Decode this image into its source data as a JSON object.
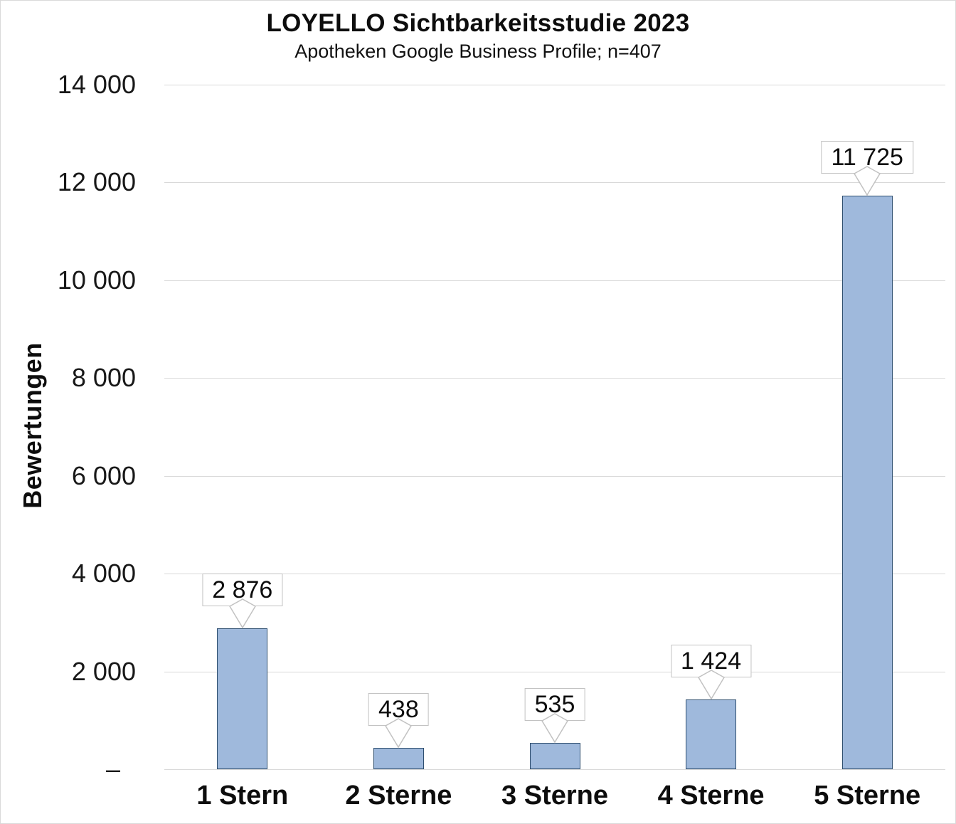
{
  "chart_data": {
    "type": "bar",
    "title": "LOYELLO Sichtbarkeitsstudie 2023",
    "subtitle": "Apotheken Google Business Profile; n=407",
    "ylabel": "Bewertungen",
    "xlabel": "",
    "ylim": [
      0,
      14000
    ],
    "ytick_step": 2000,
    "grid": "horizontal",
    "legend": "none",
    "yticks": [
      {
        "value": 0,
        "label": "–"
      },
      {
        "value": 2000,
        "label": "2 000"
      },
      {
        "value": 4000,
        "label": "4 000"
      },
      {
        "value": 6000,
        "label": "6 000"
      },
      {
        "value": 8000,
        "label": "8 000"
      },
      {
        "value": 10000,
        "label": "10 000"
      },
      {
        "value": 12000,
        "label": "12 000"
      },
      {
        "value": 14000,
        "label": "14 000"
      }
    ],
    "categories": [
      "1 Stern",
      "2 Sterne",
      "3 Sterne",
      "4 Sterne",
      "5 Sterne"
    ],
    "values": [
      2876,
      438,
      535,
      1424,
      11725
    ],
    "value_labels": [
      "2 876",
      "438",
      "535",
      "1 424",
      "11 725"
    ],
    "colors": {
      "bar_fill": "#9fb9dc",
      "bar_border": "#2e4e6e",
      "gridline": "#d9d9d9",
      "callout_border": "#c2c2c2",
      "text": "#111111"
    }
  }
}
